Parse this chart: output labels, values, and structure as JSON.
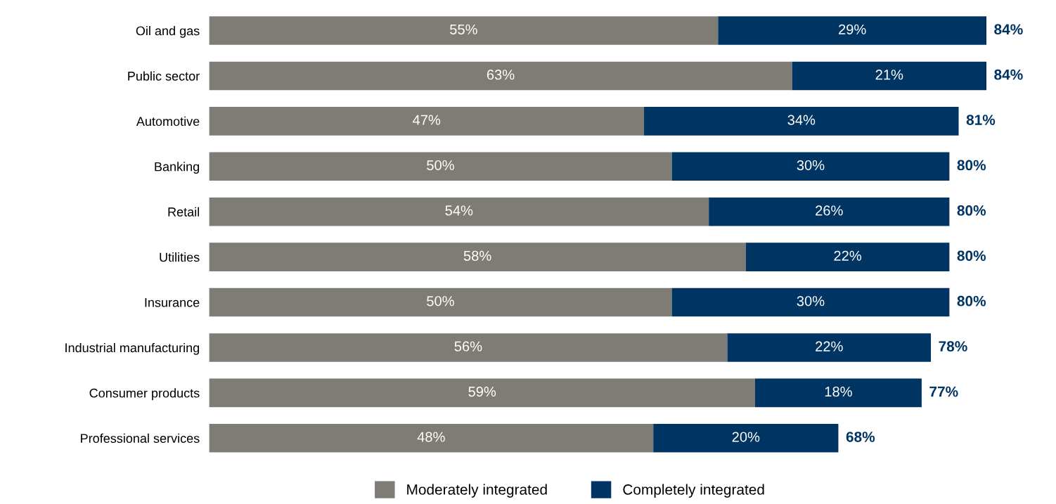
{
  "chart_data": {
    "type": "bar",
    "orientation": "horizontal",
    "stacked": true,
    "categories": [
      "Oil and gas",
      "Public sector",
      "Automotive",
      "Banking",
      "Retail",
      "Utilities",
      "Insurance",
      "Industrial manufacturing",
      "Consumer products",
      "Professional services"
    ],
    "series": [
      {
        "name": "Moderately integrated",
        "color": "#7f7c75",
        "values": [
          55,
          63,
          47,
          50,
          54,
          58,
          50,
          56,
          59,
          48
        ],
        "value_labels": [
          "55%",
          "63%",
          "47%",
          "50%",
          "54%",
          "58%",
          "50%",
          "56%",
          "59%",
          "48%"
        ]
      },
      {
        "name": "Completely integrated",
        "color": "#003462",
        "values": [
          29,
          21,
          34,
          30,
          26,
          22,
          30,
          22,
          18,
          20
        ],
        "value_labels": [
          "29%",
          "21%",
          "34%",
          "30%",
          "26%",
          "22%",
          "30%",
          "22%",
          "18%",
          "20%"
        ]
      }
    ],
    "totals": [
      "84%",
      "84%",
      "81%",
      "80%",
      "80%",
      "80%",
      "80%",
      "78%",
      "77%",
      "68%"
    ],
    "tick_labels": "y",
    "legend": "bottom",
    "grid": false
  }
}
